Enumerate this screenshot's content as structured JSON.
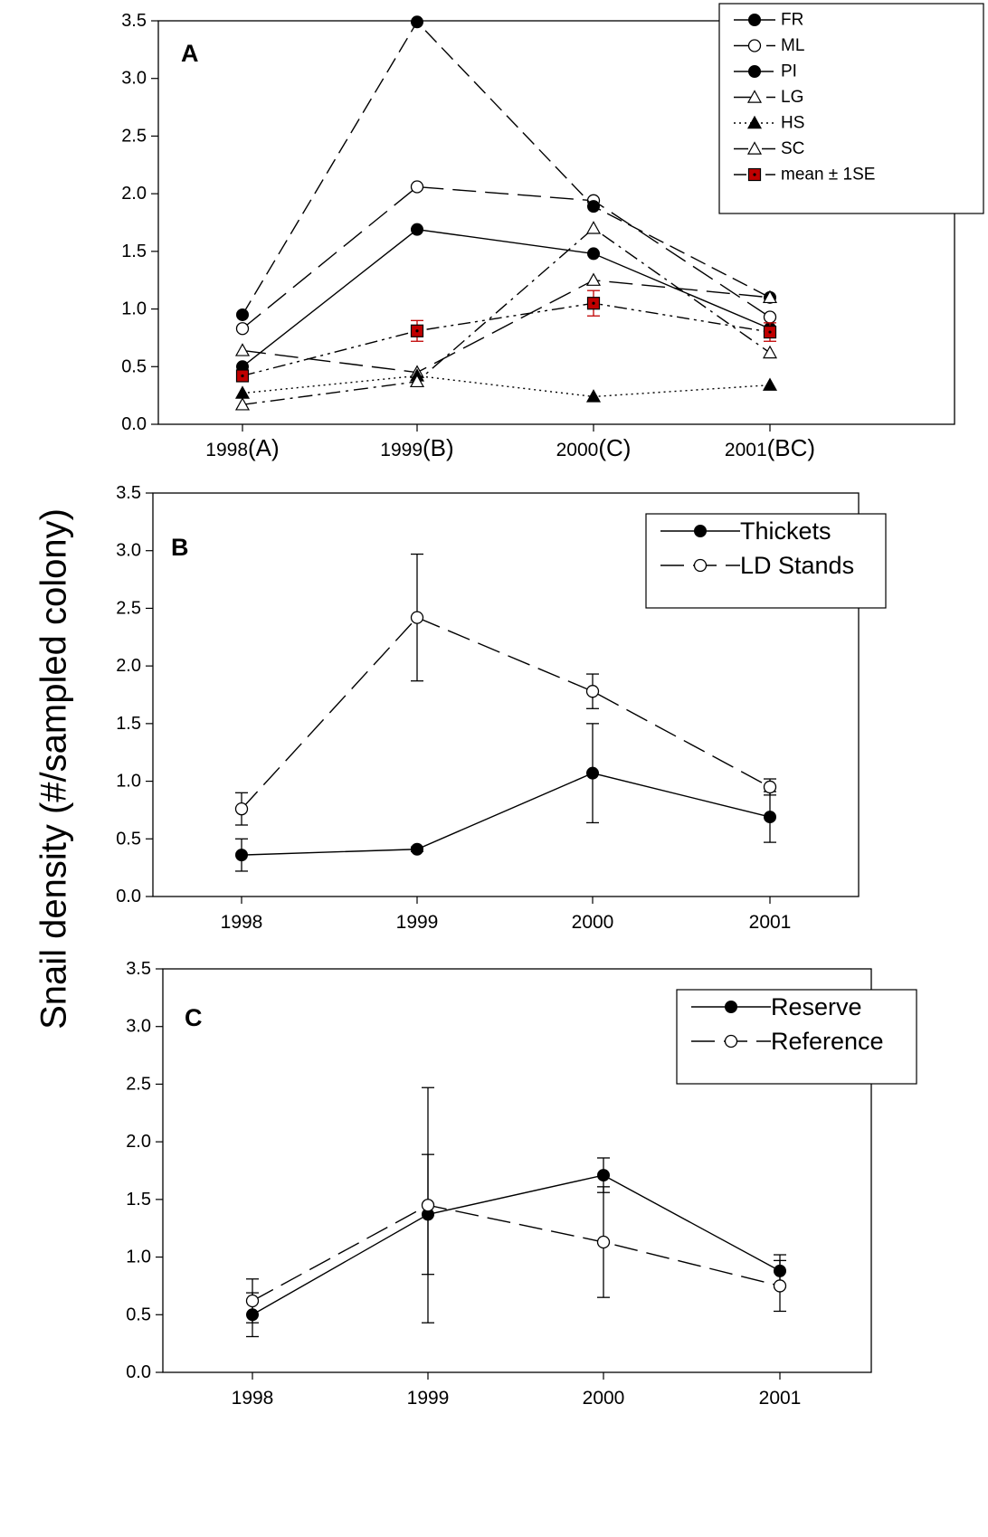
{
  "y_axis_label": "Snail density (#/sampled colony)",
  "chart_data": [
    {
      "panel": "A",
      "type": "line",
      "x_categories": [
        "1998",
        "1999",
        "2000",
        "2001"
      ],
      "x_group_labels": [
        "(A)",
        "(B)",
        "(C)",
        "(BC)"
      ],
      "ylim": [
        0,
        3.5
      ],
      "y_ticks": [
        "0.0",
        "0.5",
        "1.0",
        "1.5",
        "2.0",
        "2.5",
        "3.0",
        "3.5"
      ],
      "legend_position": "top-right",
      "series": [
        {
          "name": "FR",
          "values": [
            0.5,
            1.69,
            1.48,
            0.83
          ],
          "marker": "filled-circle",
          "line": "solid"
        },
        {
          "name": "ML",
          "values": [
            0.83,
            2.06,
            1.94,
            0.93
          ],
          "marker": "open-circle",
          "line": "long-dash"
        },
        {
          "name": "PI",
          "values": [
            0.95,
            3.49,
            1.89,
            1.1
          ],
          "marker": "filled-circle",
          "line": "dash"
        },
        {
          "name": "LG",
          "values": [
            0.64,
            0.45,
            1.25,
            1.1
          ],
          "marker": "open-triangle",
          "line": "long-dash"
        },
        {
          "name": "HS",
          "values": [
            0.27,
            0.42,
            0.24,
            0.34
          ],
          "marker": "filled-triangle",
          "line": "dotted"
        },
        {
          "name": "SC",
          "values": [
            0.17,
            0.37,
            1.7,
            0.62
          ],
          "marker": "open-triangle",
          "line": "dash-dot"
        },
        {
          "name": "mean ± 1SE",
          "values": [
            0.42,
            0.81,
            1.05,
            0.8
          ],
          "se": [
            0.04,
            0.09,
            0.11,
            0.08
          ],
          "marker": "red-square",
          "line": "dash-dot-dot"
        }
      ]
    },
    {
      "panel": "B",
      "type": "line",
      "x_categories": [
        "1998",
        "1999",
        "2000",
        "2001"
      ],
      "ylim": [
        0,
        3.5
      ],
      "y_ticks": [
        "0.0",
        "0.5",
        "1.0",
        "1.5",
        "2.0",
        "2.5",
        "3.0",
        "3.5"
      ],
      "legend_position": "top-right",
      "series": [
        {
          "name": "Thickets",
          "values": [
            0.36,
            0.41,
            1.07,
            0.69
          ],
          "se": [
            0.14,
            0.02,
            0.43,
            0.22
          ],
          "marker": "filled-circle",
          "line": "solid"
        },
        {
          "name": "LD Stands",
          "values": [
            0.76,
            2.42,
            1.78,
            0.95
          ],
          "se": [
            0.14,
            0.55,
            0.15,
            0.07
          ],
          "marker": "open-circle",
          "line": "long-dash"
        }
      ]
    },
    {
      "panel": "C",
      "type": "line",
      "x_categories": [
        "1998",
        "1999",
        "2000",
        "2001"
      ],
      "ylim": [
        0,
        3.5
      ],
      "y_ticks": [
        "0.0",
        "0.5",
        "1.0",
        "1.5",
        "2.0",
        "2.5",
        "3.0",
        "3.5"
      ],
      "legend_position": "top-right",
      "series": [
        {
          "name": "Reserve",
          "values": [
            0.5,
            1.37,
            1.71,
            0.88
          ],
          "se": [
            0.19,
            0.52,
            0.15,
            0.14
          ],
          "marker": "filled-circle",
          "line": "solid"
        },
        {
          "name": "Reference",
          "values": [
            0.62,
            1.45,
            1.13,
            0.75
          ],
          "se": [
            0.19,
            1.02,
            0.48,
            0.22
          ],
          "marker": "open-circle",
          "line": "long-dash"
        }
      ]
    }
  ]
}
